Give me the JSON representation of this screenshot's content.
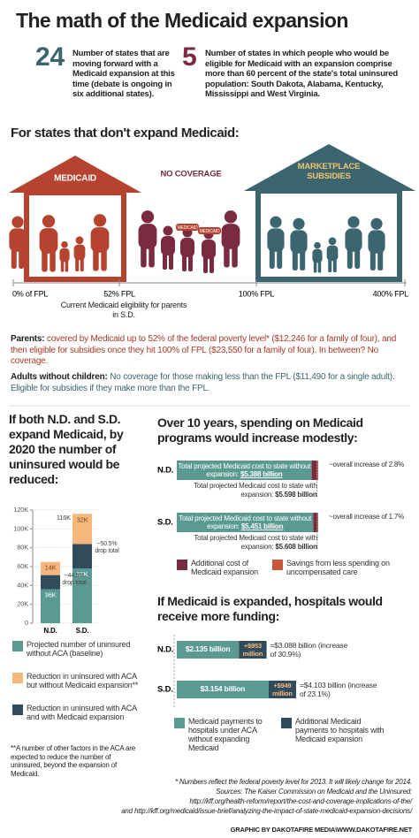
{
  "header": {
    "title": "The math of the Medicaid expansion"
  },
  "stats": [
    {
      "number": 24,
      "text": "Number of states that are moving forward with a Medicaid expansion at this time (debate is ongoing in six additional states)."
    },
    {
      "number": 5,
      "text": "Number of states in which people who would be eligible for Medicaid with an expansion comprise more than 60 percent of the state's total uninsured population: South Dakota, Alabama, Kentucky, Mississippi and West Virginia."
    }
  ],
  "coverage": {
    "heading": "For states that don't expand Medicaid:",
    "houses": [
      "MEDICAID",
      "NO COVERAGE",
      "MARKETPLACE SUBSIDIES"
    ],
    "figure_labels": [
      "MEDICAID",
      "MEDICAID"
    ],
    "fpl_labels": [
      "0% of FPL",
      "52% FPL",
      "100% FPL",
      "400% FPL"
    ],
    "fpl_note": "Current Medicaid eligibility for parents in S.D.",
    "parents": {
      "label": "Parents:",
      "text": "covered by Medicaid up to 52% of the federal poverty level* ($12,246 for a family of four), and then eligible for subsidies once they hit 100% of FPL ($23,550 for a family of four). In between? No coverage."
    },
    "adults": {
      "label": "Adults without children:",
      "text": "No coverage for those making less than the FPL ($11,490 for a single adult). Eligible for subsidies if they make more than the FPL."
    }
  },
  "chart_data": [
    {
      "type": "bar",
      "stacked": true,
      "title": "If both N.D. and S.D. expand Medicaid, by 2020 the number of uninsured would be reduced:",
      "categories": [
        "N.D.",
        "S.D."
      ],
      "series": [
        {
          "name": "Projected number of uninsured without ACA (baseline)",
          "color": "#5b9a93",
          "values": [
            36,
            58
          ],
          "value_labels": [
            "36K",
            "58K"
          ]
        },
        {
          "name": "Reduction in uninsured with ACA but without Medicaid expansion**",
          "color": "#f6b77c",
          "values": [
            14,
            32
          ],
          "value_labels": [
            "14K",
            "32K"
          ]
        },
        {
          "name": "Reduction in uninsured with ACA and with Medicaid expansion",
          "color": "#2f4b5c",
          "values": [
            15,
            26
          ]
        }
      ],
      "ylim": [
        0,
        120
      ],
      "yticks": [
        0,
        {
          "value": 20,
          "label": "20K"
        },
        {
          "value": 40,
          "label": "40K"
        },
        {
          "value": 60,
          "label": "60K"
        },
        {
          "value": 80,
          "label": "80K"
        },
        {
          "value": 100,
          "label": "100K"
        },
        {
          "value": 120,
          "label": "120K"
        }
      ],
      "annotations": [
        "~44.5% drop total",
        "~50.5% drop total",
        "116K"
      ],
      "footnote": "**A number of other factors in the ACA are expected to reduce the number of uninsured, beyond the expansion of Medicaid."
    },
    {
      "type": "waterfall",
      "title": "Over 10 years, spending on Medicaid programs would increase modestly:",
      "categories": [
        "N.D.",
        "S.D."
      ],
      "series": [
        {
          "bar_text": "Total projected Medicaid cost to state without expansion:",
          "color": "#5b9a93",
          "values": [
            5.388,
            5.451
          ],
          "value_labels": [
            "$5.388 billion",
            "$5.451 billion"
          ]
        },
        {
          "bar_text": "Total projected Medicaid cost to state with expansion:",
          "color": "#8c9a9e",
          "values": [
            5.598,
            5.608
          ],
          "value_labels": [
            "$5.598 billion",
            "$5.608 billion"
          ]
        },
        {
          "name": "Additional cost of Medicaid expansion",
          "color": "#7a2b3f",
          "values": [
            0.26,
            0.197
          ]
        },
        {
          "name": "Savings from less spending on uncompensated care",
          "color": "#c9553a",
          "values": [
            0.05,
            0.04
          ]
        }
      ],
      "annotations": [
        "~overall increase of 2.8%",
        "~overall increase of 1.7%"
      ]
    },
    {
      "type": "hbar",
      "stacked": true,
      "title": "If Medicaid is expanded, hospitals would receive more funding:",
      "categories": [
        "N.D.",
        "S.D."
      ],
      "series": [
        {
          "name": "Medicaid payments to hospitals under ACA without expanding Medicaid",
          "color": "#5b9a93",
          "label_color": "#ffffff",
          "values": [
            2.135,
            3.154
          ],
          "value_labels": [
            "$2.135 billion",
            "$3.154 billion"
          ]
        },
        {
          "name": "Additional Medicaid payments to hospitals with Medicaid expansion",
          "color": "#2f4b5c",
          "label_color": "#f6b77c",
          "values": [
            0.953,
            0.949
          ],
          "value_labels": [
            "+$953 million",
            "+$949 million"
          ]
        }
      ],
      "total_labels": [
        "=$3.088 billion (increase of 30.9%)",
        "=$4.103 billion (increase of 23.1%)"
      ]
    }
  ],
  "footer": {
    "note": "* Numbers reflect the federal poverty level for 2013. It will likely change for 2014.",
    "sources": "Sources: The Kaiser Commission on Medicaid and the Uninsured:",
    "link1": "http://kff.org/health-reform/report/the-cost-and-coverage-implications-of-the/",
    "link2": "and http://kff.org/medicaid/issue-brief/analyzing-the-impact-of-state-medicaid-expansion-decisions/",
    "credit": "GRAPHIC BY DAKOTAFIRE MEDIA\\WWW.DAKOTAFIRE.NET"
  }
}
